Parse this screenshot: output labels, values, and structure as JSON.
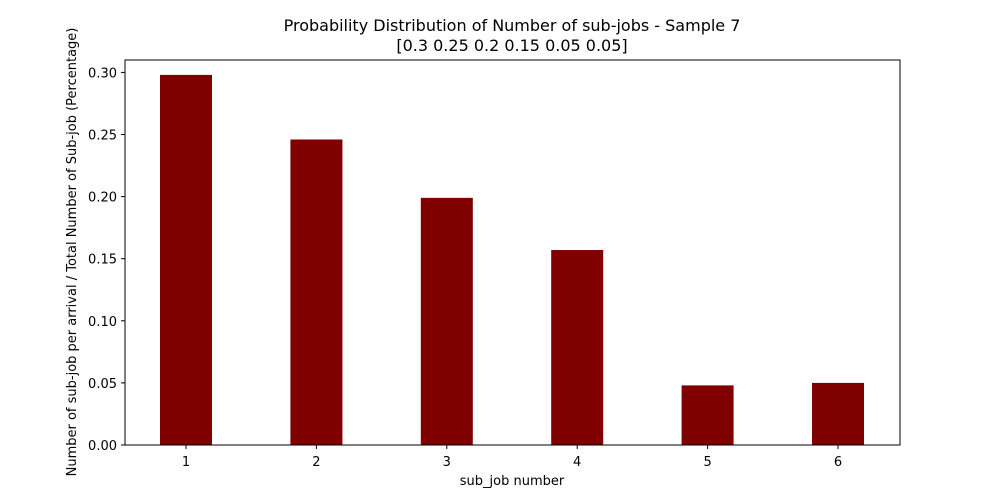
{
  "chart_data": {
    "type": "bar",
    "title_line1": "Probability Distribution of Number of sub-jobs - Sample 7",
    "title_line2": "[0.3  0.25 0.2  0.15 0.05 0.05]",
    "xlabel": "sub_job number",
    "ylabel": "Number of sub-job per arrival / Total Number of Sub-job (Percentage)",
    "categories": [
      "1",
      "2",
      "3",
      "4",
      "5",
      "6"
    ],
    "values": [
      0.298,
      0.246,
      0.199,
      0.157,
      0.048,
      0.05
    ],
    "ylim": [
      0,
      0.31
    ],
    "yticks": [
      "0.00",
      "0.05",
      "0.10",
      "0.15",
      "0.20",
      "0.25",
      "0.30"
    ],
    "bar_color": "#800000",
    "grid": false
  }
}
